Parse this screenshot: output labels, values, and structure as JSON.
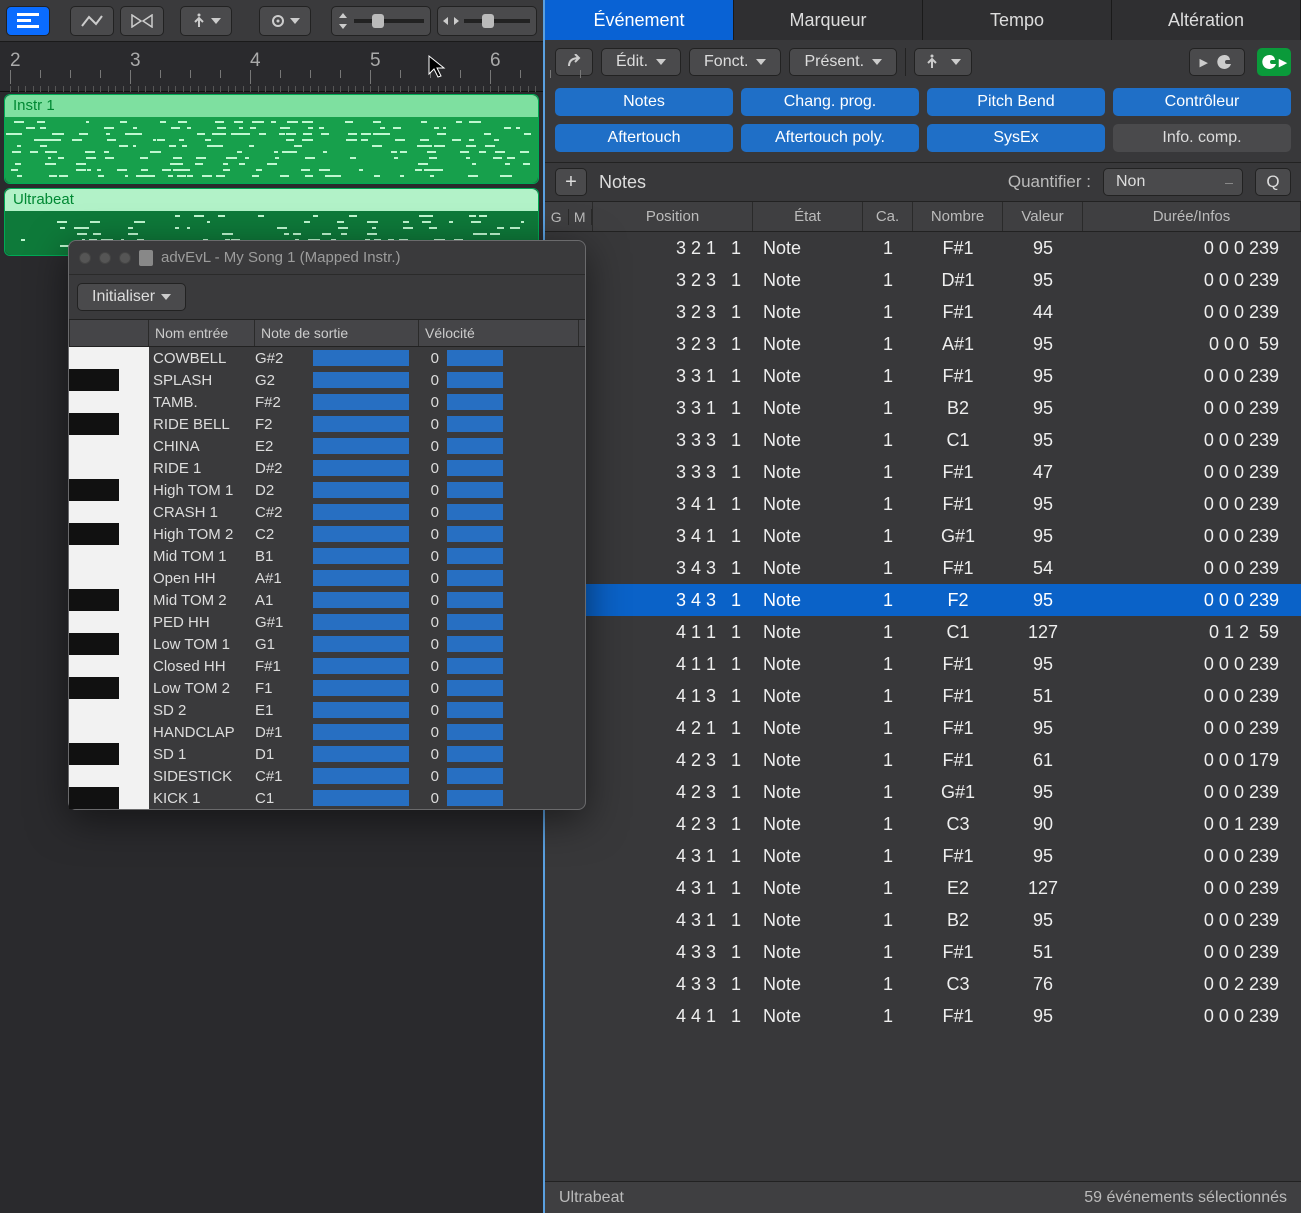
{
  "colors": {
    "accent": "#0a6cff",
    "tabActive": "#0962d4",
    "filterBlue": "#1f6fc7",
    "rowSel": "#0a62c8",
    "track1": "#17a04c",
    "track2": "#0e7a3a",
    "bar": "#276fc2",
    "greenBadge": "#0a9a3a"
  },
  "ruler_numbers": [
    2,
    3,
    4,
    5,
    6
  ],
  "tracks": [
    {
      "name": "Instr 1"
    },
    {
      "name": "Ultrabeat"
    }
  ],
  "float_window": {
    "title": "advEvL - My Song 1 (Mapped Instr.)",
    "menu_label": "Initialiser",
    "columns": [
      "Nom entrée",
      "Note de sortie",
      "Vélocité"
    ],
    "rows": [
      {
        "black": false,
        "name": "COWBELL",
        "note": "G#2",
        "vel": 0
      },
      {
        "black": true,
        "name": "SPLASH",
        "note": "G2",
        "vel": 0
      },
      {
        "black": false,
        "name": "TAMB.",
        "note": "F#2",
        "vel": 0
      },
      {
        "black": true,
        "name": "RIDE BELL",
        "note": "F2",
        "vel": 0
      },
      {
        "black": false,
        "name": "CHINA",
        "note": "E2",
        "vel": 0
      },
      {
        "black": false,
        "name": "RIDE 1",
        "note": "D#2",
        "vel": 0
      },
      {
        "black": true,
        "name": "High TOM 1",
        "note": "D2",
        "vel": 0
      },
      {
        "black": false,
        "name": "CRASH 1",
        "note": "C#2",
        "vel": 0
      },
      {
        "black": true,
        "name": "High TOM 2",
        "note": "C2",
        "vel": 0
      },
      {
        "black": false,
        "name": "Mid TOM 1",
        "note": "B1",
        "vel": 0
      },
      {
        "black": false,
        "name": "Open HH",
        "note": "A#1",
        "vel": 0
      },
      {
        "black": true,
        "name": "Mid TOM 2",
        "note": "A1",
        "vel": 0
      },
      {
        "black": false,
        "name": "PED HH",
        "note": "G#1",
        "vel": 0
      },
      {
        "black": true,
        "name": "Low TOM 1",
        "note": "G1",
        "vel": 0
      },
      {
        "black": false,
        "name": "Closed HH",
        "note": "F#1",
        "vel": 0
      },
      {
        "black": true,
        "name": "Low TOM 2",
        "note": "F1",
        "vel": 0
      },
      {
        "black": false,
        "name": "SD 2",
        "note": "E1",
        "vel": 0
      },
      {
        "black": false,
        "name": "HANDCLAP",
        "note": "D#1",
        "vel": 0
      },
      {
        "black": true,
        "name": "SD 1",
        "note": "D1",
        "vel": 0
      },
      {
        "black": false,
        "name": "SIDESTICK",
        "note": "C#1",
        "vel": 0
      },
      {
        "black": true,
        "name": "KICK 1",
        "note": "C1",
        "vel": 0
      }
    ]
  },
  "tabs": [
    "Événement",
    "Marqueur",
    "Tempo",
    "Altération"
  ],
  "subbar": {
    "edit": "Édit.",
    "funct": "Fonct.",
    "present": "Présent."
  },
  "filters": [
    {
      "label": "Notes",
      "grey": false
    },
    {
      "label": "Chang. prog.",
      "grey": false
    },
    {
      "label": "Pitch Bend",
      "grey": false
    },
    {
      "label": "Contrôleur",
      "grey": false
    },
    {
      "label": "Aftertouch",
      "grey": false
    },
    {
      "label": "Aftertouch poly.",
      "grey": false
    },
    {
      "label": "SysEx",
      "grey": false
    },
    {
      "label": "Info. comp.",
      "grey": true
    }
  ],
  "list_header": {
    "notes_label": "Notes",
    "quant_label": "Quantifier :",
    "quant_value": "Non",
    "q_button": "Q"
  },
  "columns": {
    "g": "G",
    "m": "M",
    "pos": "Position",
    "etat": "État",
    "ca": "Ca.",
    "nom": "Nombre",
    "val": "Valeur",
    "dur": "Durée/Infos"
  },
  "events": [
    {
      "pos": "3 2 1   1",
      "etat": "Note",
      "ca": 1,
      "nom": "F#1",
      "val": "95",
      "dur": "0 0 0 239",
      "sel": false
    },
    {
      "pos": "3 2 3   1",
      "etat": "Note",
      "ca": 1,
      "nom": "D#1",
      "val": "95",
      "dur": "0 0 0 239",
      "sel": false
    },
    {
      "pos": "3 2 3   1",
      "etat": "Note",
      "ca": 1,
      "nom": "F#1",
      "val": "44",
      "dur": "0 0 0 239",
      "sel": false
    },
    {
      "pos": "3 2 3   1",
      "etat": "Note",
      "ca": 1,
      "nom": "A#1",
      "val": "95",
      "dur": "0 0 0  59",
      "sel": false
    },
    {
      "pos": "3 3 1   1",
      "etat": "Note",
      "ca": 1,
      "nom": "F#1",
      "val": "95",
      "dur": "0 0 0 239",
      "sel": false
    },
    {
      "pos": "3 3 1   1",
      "etat": "Note",
      "ca": 1,
      "nom": "B2",
      "val": "95",
      "dur": "0 0 0 239",
      "sel": false
    },
    {
      "pos": "3 3 3   1",
      "etat": "Note",
      "ca": 1,
      "nom": "C1",
      "val": "95",
      "dur": "0 0 0 239",
      "sel": false
    },
    {
      "pos": "3 3 3   1",
      "etat": "Note",
      "ca": 1,
      "nom": "F#1",
      "val": "47",
      "dur": "0 0 0 239",
      "sel": false
    },
    {
      "pos": "3 4 1   1",
      "etat": "Note",
      "ca": 1,
      "nom": "F#1",
      "val": "95",
      "dur": "0 0 0 239",
      "sel": false
    },
    {
      "pos": "3 4 1   1",
      "etat": "Note",
      "ca": 1,
      "nom": "G#1",
      "val": "95",
      "dur": "0 0 0 239",
      "sel": false
    },
    {
      "pos": "3 4 3   1",
      "etat": "Note",
      "ca": 1,
      "nom": "F#1",
      "val": "54",
      "dur": "0 0 0 239",
      "sel": false
    },
    {
      "pos": "3 4 3   1",
      "etat": "Note",
      "ca": 1,
      "nom": "F2",
      "val": "95",
      "dur": "0 0 0 239",
      "sel": true
    },
    {
      "pos": "4 1 1   1",
      "etat": "Note",
      "ca": 1,
      "nom": "C1",
      "val": "127",
      "dur": "0 1 2  59",
      "sel": false
    },
    {
      "pos": "4 1 1   1",
      "etat": "Note",
      "ca": 1,
      "nom": "F#1",
      "val": "95",
      "dur": "0 0 0 239",
      "sel": false
    },
    {
      "pos": "4 1 3   1",
      "etat": "Note",
      "ca": 1,
      "nom": "F#1",
      "val": "51",
      "dur": "0 0 0 239",
      "sel": false
    },
    {
      "pos": "4 2 1   1",
      "etat": "Note",
      "ca": 1,
      "nom": "F#1",
      "val": "95",
      "dur": "0 0 0 239",
      "sel": false
    },
    {
      "pos": "4 2 3   1",
      "etat": "Note",
      "ca": 1,
      "nom": "F#1",
      "val": "61",
      "dur": "0 0 0 179",
      "sel": false
    },
    {
      "pos": "4 2 3   1",
      "etat": "Note",
      "ca": 1,
      "nom": "G#1",
      "val": "95",
      "dur": "0 0 0 239",
      "sel": false
    },
    {
      "pos": "4 2 3   1",
      "etat": "Note",
      "ca": 1,
      "nom": "C3",
      "val": "90",
      "dur": "0 0 1 239",
      "sel": false
    },
    {
      "pos": "4 3 1   1",
      "etat": "Note",
      "ca": 1,
      "nom": "F#1",
      "val": "95",
      "dur": "0 0 0 239",
      "sel": false
    },
    {
      "pos": "4 3 1   1",
      "etat": "Note",
      "ca": 1,
      "nom": "E2",
      "val": "127",
      "dur": "0 0 0 239",
      "sel": false
    },
    {
      "pos": "4 3 1   1",
      "etat": "Note",
      "ca": 1,
      "nom": "B2",
      "val": "95",
      "dur": "0 0 0 239",
      "sel": false
    },
    {
      "pos": "4 3 3   1",
      "etat": "Note",
      "ca": 1,
      "nom": "F#1",
      "val": "51",
      "dur": "0 0 0 239",
      "sel": false
    },
    {
      "pos": "4 3 3   1",
      "etat": "Note",
      "ca": 1,
      "nom": "C3",
      "val": "76",
      "dur": "0 0 2 239",
      "sel": false
    },
    {
      "pos": "4 4 1   1",
      "etat": "Note",
      "ca": 1,
      "nom": "F#1",
      "val": "95",
      "dur": "0 0 0 239",
      "sel": false
    }
  ],
  "status": {
    "left": "Ultrabeat",
    "right": "59 événements sélectionnés"
  }
}
